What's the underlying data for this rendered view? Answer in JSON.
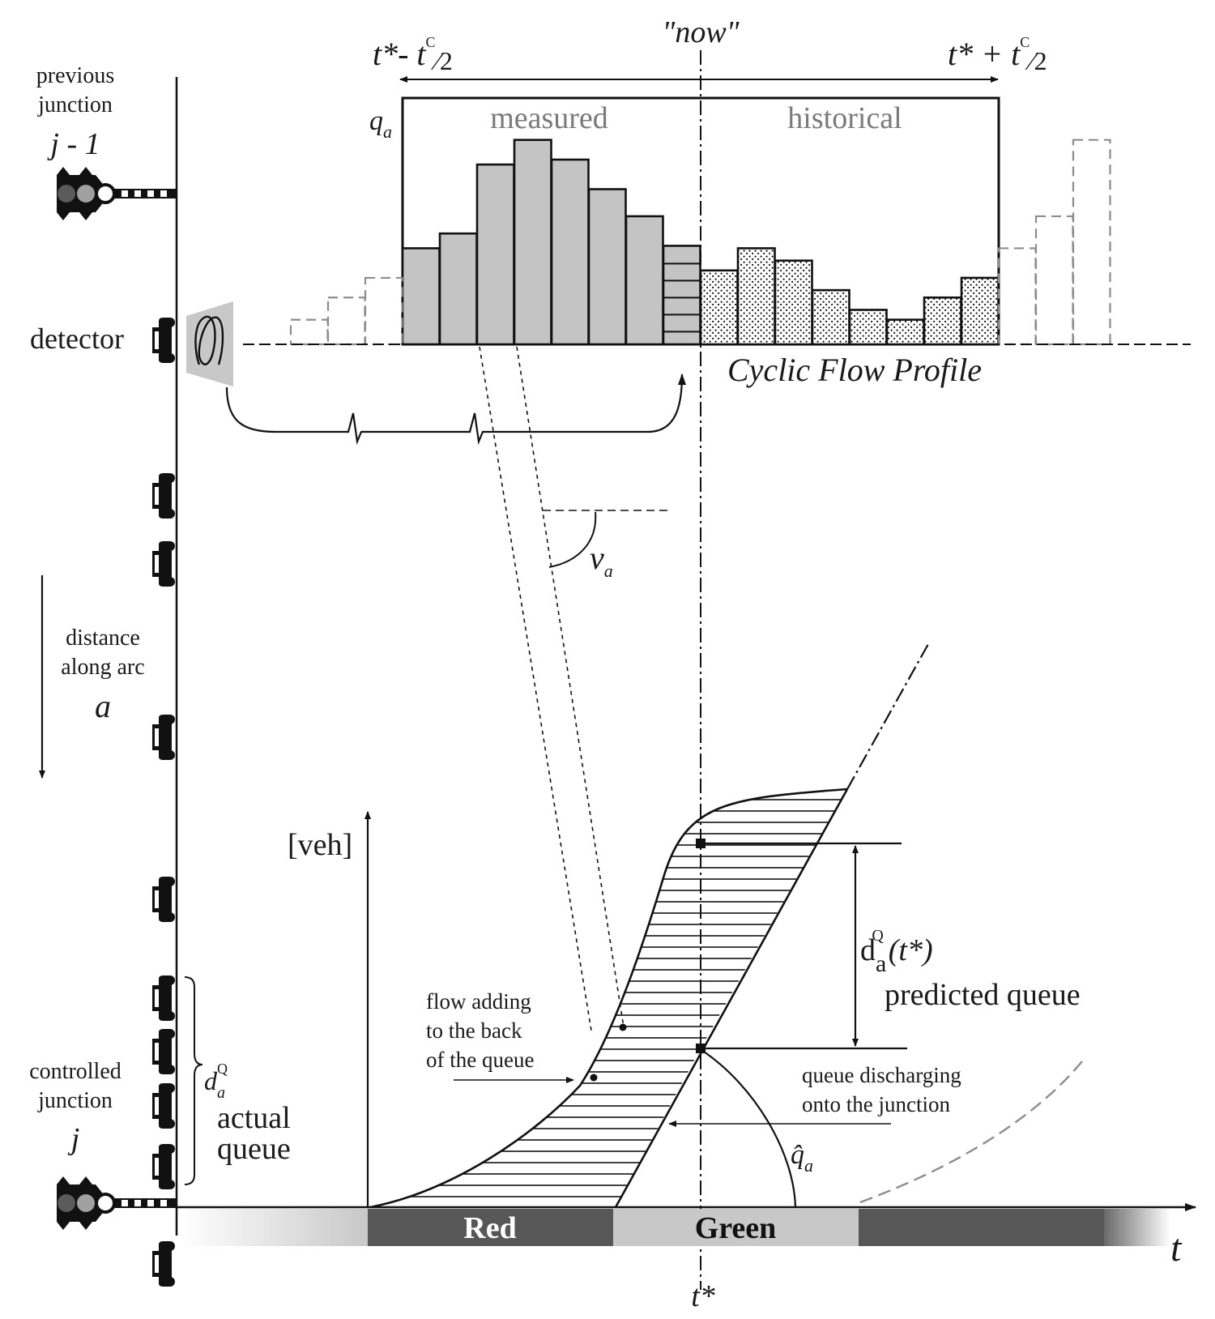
{
  "left_labels": {
    "previous_junction": [
      "previous",
      "junction",
      "j - 1"
    ],
    "detector": "detector",
    "distance": [
      "distance",
      "along arc",
      "a"
    ],
    "controlled_junction": [
      "controlled",
      "junction",
      "j"
    ]
  },
  "top": {
    "now": "\"now\"",
    "window_left_main": "t*- t",
    "window_left_sup": "C",
    "window_left_frac": "⁄2",
    "window_right_main": "t* + t",
    "window_right_sup": "C",
    "window_right_frac": "⁄2",
    "q_label": "q",
    "q_sub": "a",
    "measured": "measured",
    "historical": "historical",
    "cyclic_flow_profile": "Cyclic Flow Profile"
  },
  "flow_profile": {
    "measured_bins": [
      0.39,
      0.45,
      0.73,
      0.83,
      0.75,
      0.63,
      0.52,
      0.4
    ],
    "historical_bins": [
      0.3,
      0.39,
      0.34,
      0.22,
      0.14,
      0.1,
      0.19,
      0.27
    ],
    "dashed_left_bins": [
      0.1,
      0.19,
      0.27
    ],
    "dashed_right_bins": [
      0.39,
      0.52,
      0.83
    ]
  },
  "speed": {
    "label": "v",
    "sub": "a"
  },
  "queue_plot": {
    "y_label": "[veh]",
    "d_label_main": "d",
    "d_sub": "a",
    "d_sup": "Q",
    "d_arg": "(t*)",
    "predicted_queue": "predicted queue",
    "flow_adding": [
      "flow adding",
      "to the back",
      "of the queue"
    ],
    "queue_discharging": [
      "queue discharging",
      "onto the junction"
    ],
    "qhat_label": "q̂",
    "qhat_sub": "a",
    "actual_d_main": "d",
    "actual_d_sub": "a",
    "actual_d_sup": "Q",
    "actual_queue": [
      "actual",
      "queue"
    ]
  },
  "signal_bar": {
    "red": "Red",
    "green": "Green",
    "colors": {
      "red_phase": "#575757",
      "green_phase": "#c8c8c8"
    }
  },
  "axis": {
    "t_label": "t",
    "tstar": "t*"
  },
  "colors": {
    "bar_fill": "#c4c4c4",
    "dashed_gray": "#8c8c8c",
    "line": "#111111"
  }
}
